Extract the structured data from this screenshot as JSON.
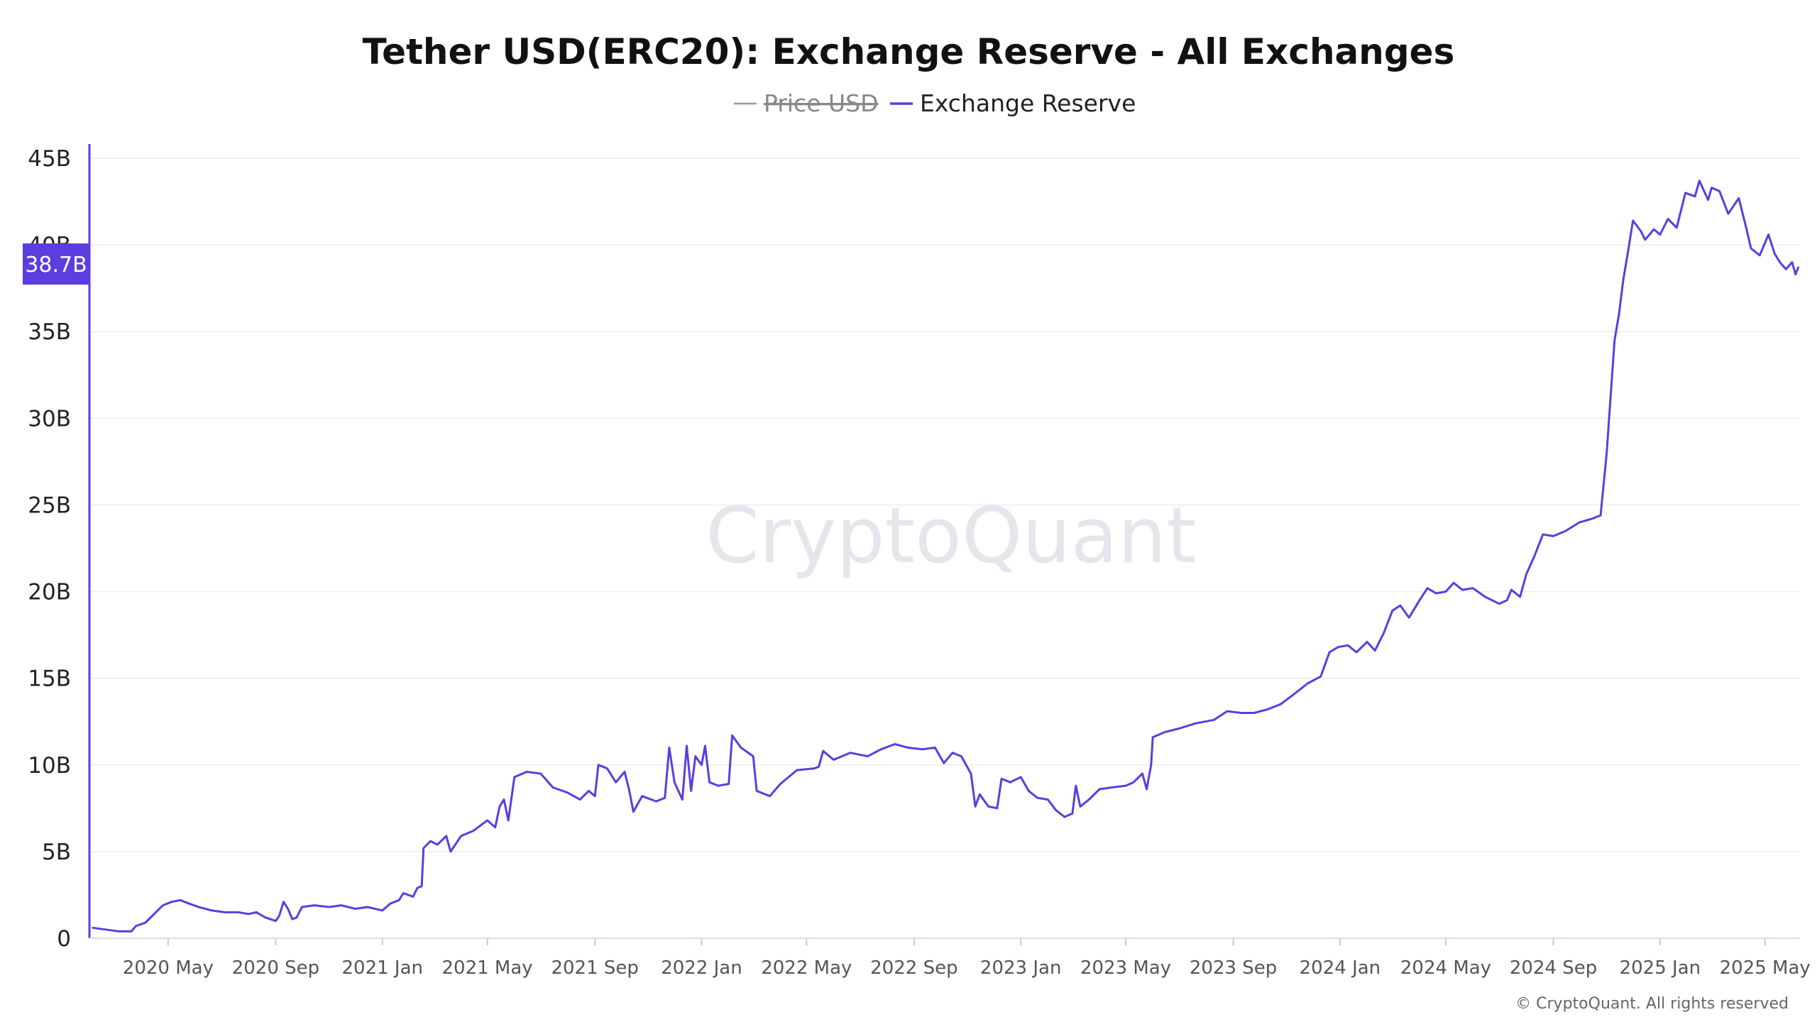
{
  "colors": {
    "series": "#5b3de0",
    "price": "#999999",
    "grid": "#ececf2",
    "axis": "#5b3de0",
    "watermark": "#e7e5ec",
    "tag_bg": "#5b3de0"
  },
  "watermark": "CryptoQuant",
  "copyright": "© CryptoQuant. All rights reserved",
  "current_value_tag": "38.7B",
  "chart_data": {
    "type": "line",
    "title": "Tether USD(ERC20): Exchange Reserve - All Exchanges",
    "xlabel": "",
    "ylabel": "",
    "ylim": [
      0,
      45
    ],
    "y_unit": "B",
    "y_ticks": [
      {
        "value": 0,
        "label": "0"
      },
      {
        "value": 5,
        "label": "5B"
      },
      {
        "value": 10,
        "label": "10B"
      },
      {
        "value": 15,
        "label": "15B"
      },
      {
        "value": 20,
        "label": "20B"
      },
      {
        "value": 25,
        "label": "25B"
      },
      {
        "value": 30,
        "label": "30B"
      },
      {
        "value": 35,
        "label": "35B"
      },
      {
        "value": 40,
        "label": "40B"
      },
      {
        "value": 45,
        "label": "45B"
      }
    ],
    "xlim": [
      "2020-02-01",
      "2025-06-10"
    ],
    "x_ticks": [
      {
        "date": "2020-05-01",
        "label": "2020 May"
      },
      {
        "date": "2020-09-01",
        "label": "2020 Sep"
      },
      {
        "date": "2021-01-01",
        "label": "2021 Jan"
      },
      {
        "date": "2021-05-01",
        "label": "2021 May"
      },
      {
        "date": "2021-09-01",
        "label": "2021 Sep"
      },
      {
        "date": "2022-01-01",
        "label": "2022 Jan"
      },
      {
        "date": "2022-05-01",
        "label": "2022 May"
      },
      {
        "date": "2022-09-01",
        "label": "2022 Sep"
      },
      {
        "date": "2023-01-01",
        "label": "2023 Jan"
      },
      {
        "date": "2023-05-01",
        "label": "2023 May"
      },
      {
        "date": "2023-09-01",
        "label": "2023 Sep"
      },
      {
        "date": "2024-01-01",
        "label": "2024 Jan"
      },
      {
        "date": "2024-05-01",
        "label": "2024 May"
      },
      {
        "date": "2024-09-01",
        "label": "2024 Sep"
      },
      {
        "date": "2025-01-01",
        "label": "2025 Jan"
      },
      {
        "date": "2025-05-01",
        "label": "2025 May"
      }
    ],
    "grid": true,
    "legend_position": "top-center",
    "series": [
      {
        "name": "Price USD",
        "hidden": true,
        "points": []
      },
      {
        "name": "Exchange Reserve",
        "points": [
          [
            "2020-02-05",
            0.6
          ],
          [
            "2020-02-20",
            0.5
          ],
          [
            "2020-03-05",
            0.4
          ],
          [
            "2020-03-20",
            0.4
          ],
          [
            "2020-03-25",
            0.7
          ],
          [
            "2020-04-05",
            0.9
          ],
          [
            "2020-04-15",
            1.4
          ],
          [
            "2020-04-25",
            1.9
          ],
          [
            "2020-05-05",
            2.1
          ],
          [
            "2020-05-15",
            2.2
          ],
          [
            "2020-05-25",
            2.0
          ],
          [
            "2020-06-05",
            1.8
          ],
          [
            "2020-06-20",
            1.6
          ],
          [
            "2020-07-05",
            1.5
          ],
          [
            "2020-07-20",
            1.5
          ],
          [
            "2020-08-01",
            1.4
          ],
          [
            "2020-08-10",
            1.5
          ],
          [
            "2020-08-20",
            1.2
          ],
          [
            "2020-09-01",
            1.0
          ],
          [
            "2020-09-05",
            1.3
          ],
          [
            "2020-09-10",
            2.1
          ],
          [
            "2020-09-15",
            1.7
          ],
          [
            "2020-09-20",
            1.1
          ],
          [
            "2020-09-25",
            1.2
          ],
          [
            "2020-10-01",
            1.8
          ],
          [
            "2020-10-15",
            1.9
          ],
          [
            "2020-11-01",
            1.8
          ],
          [
            "2020-11-15",
            1.9
          ],
          [
            "2020-12-01",
            1.7
          ],
          [
            "2020-12-15",
            1.8
          ],
          [
            "2021-01-01",
            1.6
          ],
          [
            "2021-01-10",
            2.0
          ],
          [
            "2021-01-20",
            2.2
          ],
          [
            "2021-01-25",
            2.6
          ],
          [
            "2021-02-05",
            2.4
          ],
          [
            "2021-02-10",
            2.9
          ],
          [
            "2021-02-15",
            3.0
          ],
          [
            "2021-02-17",
            5.2
          ],
          [
            "2021-02-25",
            5.6
          ],
          [
            "2021-03-05",
            5.4
          ],
          [
            "2021-03-15",
            5.9
          ],
          [
            "2021-03-20",
            5.0
          ],
          [
            "2021-04-01",
            5.9
          ],
          [
            "2021-04-15",
            6.2
          ],
          [
            "2021-05-01",
            6.8
          ],
          [
            "2021-05-10",
            6.4
          ],
          [
            "2021-05-15",
            7.6
          ],
          [
            "2021-05-20",
            8.0
          ],
          [
            "2021-05-25",
            6.8
          ],
          [
            "2021-06-01",
            9.3
          ],
          [
            "2021-06-15",
            9.6
          ],
          [
            "2021-07-01",
            9.5
          ],
          [
            "2021-07-15",
            8.7
          ],
          [
            "2021-08-01",
            8.4
          ],
          [
            "2021-08-15",
            8.0
          ],
          [
            "2021-08-25",
            8.5
          ],
          [
            "2021-09-01",
            8.2
          ],
          [
            "2021-09-05",
            10.0
          ],
          [
            "2021-09-15",
            9.8
          ],
          [
            "2021-09-25",
            9.0
          ],
          [
            "2021-10-05",
            9.6
          ],
          [
            "2021-10-10",
            8.6
          ],
          [
            "2021-10-15",
            7.3
          ],
          [
            "2021-10-25",
            8.2
          ],
          [
            "2021-11-10",
            7.9
          ],
          [
            "2021-11-20",
            8.1
          ],
          [
            "2021-11-25",
            11.0
          ],
          [
            "2021-12-01",
            9.0
          ],
          [
            "2021-12-10",
            8.0
          ],
          [
            "2021-12-15",
            11.1
          ],
          [
            "2021-12-20",
            8.5
          ],
          [
            "2021-12-25",
            10.5
          ],
          [
            "2022-01-01",
            10.0
          ],
          [
            "2022-01-05",
            11.1
          ],
          [
            "2022-01-10",
            9.0
          ],
          [
            "2022-01-20",
            8.8
          ],
          [
            "2022-02-01",
            8.9
          ],
          [
            "2022-02-05",
            11.7
          ],
          [
            "2022-02-15",
            11.0
          ],
          [
            "2022-03-01",
            10.5
          ],
          [
            "2022-03-05",
            8.5
          ],
          [
            "2022-03-20",
            8.2
          ],
          [
            "2022-04-01",
            8.9
          ],
          [
            "2022-04-20",
            9.7
          ],
          [
            "2022-05-10",
            9.8
          ],
          [
            "2022-05-15",
            9.9
          ],
          [
            "2022-05-20",
            10.8
          ],
          [
            "2022-06-01",
            10.3
          ],
          [
            "2022-06-20",
            10.7
          ],
          [
            "2022-07-10",
            10.5
          ],
          [
            "2022-07-25",
            10.9
          ],
          [
            "2022-08-10",
            11.2
          ],
          [
            "2022-08-25",
            11.0
          ],
          [
            "2022-09-10",
            10.9
          ],
          [
            "2022-09-25",
            11.0
          ],
          [
            "2022-10-05",
            10.1
          ],
          [
            "2022-10-15",
            10.7
          ],
          [
            "2022-10-25",
            10.5
          ],
          [
            "2022-11-05",
            9.5
          ],
          [
            "2022-11-10",
            7.6
          ],
          [
            "2022-11-15",
            8.3
          ],
          [
            "2022-11-25",
            7.6
          ],
          [
            "2022-12-05",
            7.5
          ],
          [
            "2022-12-10",
            9.2
          ],
          [
            "2022-12-20",
            9.0
          ],
          [
            "2023-01-01",
            9.3
          ],
          [
            "2023-01-10",
            8.5
          ],
          [
            "2023-01-20",
            8.1
          ],
          [
            "2023-02-01",
            8.0
          ],
          [
            "2023-02-10",
            7.4
          ],
          [
            "2023-02-20",
            7.0
          ],
          [
            "2023-03-01",
            7.2
          ],
          [
            "2023-03-05",
            8.8
          ],
          [
            "2023-03-10",
            7.6
          ],
          [
            "2023-03-20",
            8.0
          ],
          [
            "2023-04-01",
            8.6
          ],
          [
            "2023-04-15",
            8.7
          ],
          [
            "2023-05-01",
            8.8
          ],
          [
            "2023-05-10",
            9.0
          ],
          [
            "2023-05-20",
            9.5
          ],
          [
            "2023-05-25",
            8.6
          ],
          [
            "2023-05-30",
            10.0
          ],
          [
            "2023-06-01",
            11.6
          ],
          [
            "2023-06-15",
            11.9
          ],
          [
            "2023-07-01",
            12.1
          ],
          [
            "2023-07-20",
            12.4
          ],
          [
            "2023-08-10",
            12.6
          ],
          [
            "2023-08-25",
            13.1
          ],
          [
            "2023-09-10",
            13.0
          ],
          [
            "2023-09-25",
            13.0
          ],
          [
            "2023-10-10",
            13.2
          ],
          [
            "2023-10-25",
            13.5
          ],
          [
            "2023-11-10",
            14.1
          ],
          [
            "2023-11-25",
            14.7
          ],
          [
            "2023-12-10",
            15.1
          ],
          [
            "2023-12-20",
            16.5
          ],
          [
            "2023-12-30",
            16.8
          ],
          [
            "2024-01-10",
            16.9
          ],
          [
            "2024-01-20",
            16.5
          ],
          [
            "2024-02-01",
            17.1
          ],
          [
            "2024-02-10",
            16.6
          ],
          [
            "2024-02-20",
            17.6
          ],
          [
            "2024-03-01",
            18.9
          ],
          [
            "2024-03-10",
            19.2
          ],
          [
            "2024-03-20",
            18.5
          ],
          [
            "2024-04-01",
            19.5
          ],
          [
            "2024-04-10",
            20.2
          ],
          [
            "2024-04-20",
            19.9
          ],
          [
            "2024-05-01",
            20.0
          ],
          [
            "2024-05-10",
            20.5
          ],
          [
            "2024-05-20",
            20.1
          ],
          [
            "2024-06-01",
            20.2
          ],
          [
            "2024-06-15",
            19.7
          ],
          [
            "2024-07-01",
            19.3
          ],
          [
            "2024-07-10",
            19.5
          ],
          [
            "2024-07-15",
            20.1
          ],
          [
            "2024-07-25",
            19.7
          ],
          [
            "2024-08-01",
            21.0
          ],
          [
            "2024-08-10",
            22.0
          ],
          [
            "2024-08-20",
            23.3
          ],
          [
            "2024-09-01",
            23.2
          ],
          [
            "2024-09-15",
            23.5
          ],
          [
            "2024-10-01",
            24.0
          ],
          [
            "2024-10-15",
            24.2
          ],
          [
            "2024-10-25",
            24.4
          ],
          [
            "2024-11-01",
            28.0
          ],
          [
            "2024-11-05",
            30.9
          ],
          [
            "2024-11-10",
            34.5
          ],
          [
            "2024-11-15",
            36.0
          ],
          [
            "2024-11-20",
            38.0
          ],
          [
            "2024-11-25",
            39.5
          ],
          [
            "2024-12-01",
            41.4
          ],
          [
            "2024-12-10",
            40.8
          ],
          [
            "2024-12-15",
            40.3
          ],
          [
            "2024-12-25",
            40.9
          ],
          [
            "2025-01-01",
            40.6
          ],
          [
            "2025-01-10",
            41.5
          ],
          [
            "2025-01-20",
            41.0
          ],
          [
            "2025-01-30",
            43.0
          ],
          [
            "2025-02-10",
            42.8
          ],
          [
            "2025-02-15",
            43.7
          ],
          [
            "2025-02-25",
            42.6
          ],
          [
            "2025-03-01",
            43.3
          ],
          [
            "2025-03-10",
            43.1
          ],
          [
            "2025-03-20",
            41.8
          ],
          [
            "2025-04-01",
            42.7
          ],
          [
            "2025-04-10",
            40.9
          ],
          [
            "2025-04-15",
            39.8
          ],
          [
            "2025-04-25",
            39.4
          ],
          [
            "2025-05-05",
            40.6
          ],
          [
            "2025-05-12",
            39.5
          ],
          [
            "2025-05-18",
            39.0
          ],
          [
            "2025-05-25",
            38.6
          ],
          [
            "2025-06-01",
            39.0
          ],
          [
            "2025-06-05",
            38.3
          ],
          [
            "2025-06-08",
            38.7
          ]
        ]
      }
    ]
  }
}
